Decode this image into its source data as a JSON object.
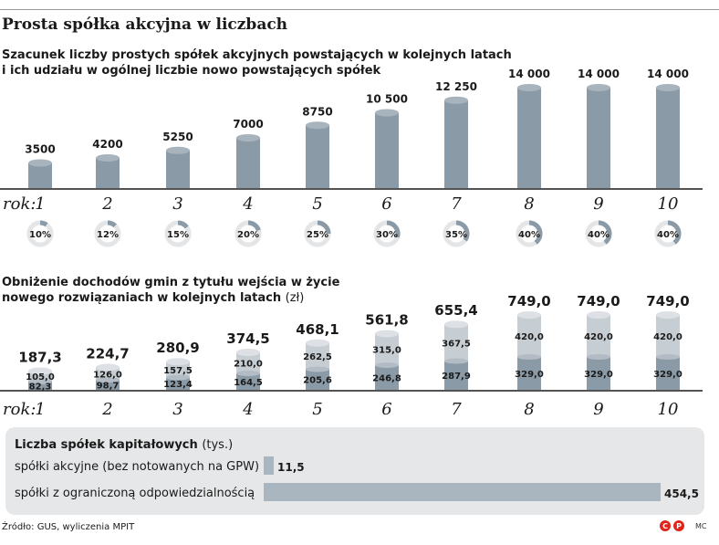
{
  "title": "Prosta spółka akcyjna w liczbach",
  "chart_data": [
    {
      "type": "bar",
      "subtitle_lines": [
        "Szacunek liczby prostych spółek akcyjnych powstających w kolejnych latach",
        "i ich udziału w ogólnej liczbie nowo powstających spółek"
      ],
      "axis_label": "rok:",
      "categories": [
        "1",
        "2",
        "3",
        "4",
        "5",
        "6",
        "7",
        "8",
        "9",
        "10"
      ],
      "values": [
        3500,
        4200,
        5250,
        7000,
        8750,
        10500,
        12250,
        14000,
        14000,
        14000
      ],
      "value_labels": [
        "3500",
        "4200",
        "5250",
        "7000",
        "8750",
        "10 500",
        "12 250",
        "14 000",
        "14 000",
        "14 000"
      ],
      "share_values": [
        10,
        12,
        15,
        20,
        25,
        30,
        35,
        40,
        40,
        40
      ],
      "share_labels": [
        "10%",
        "12%",
        "15%",
        "20%",
        "25%",
        "30%",
        "35%",
        "40%",
        "40%",
        "40%"
      ],
      "ylim": [
        0,
        14000
      ],
      "colors": {
        "bar": "#8a9aa6",
        "share": "#8a9aa6",
        "ring": "#e3e5e7"
      }
    },
    {
      "type": "bar",
      "stacked": true,
      "subtitle_lines": [
        "Obniżenie dochodów gmin z tytułu wejścia w życie",
        "nowego rozwiązaniach w kolejnych latach"
      ],
      "unit": "(zł)",
      "axis_label": "rok:",
      "categories": [
        "1",
        "2",
        "3",
        "4",
        "5",
        "6",
        "7",
        "8",
        "9",
        "10"
      ],
      "totals": [
        187.3,
        224.7,
        280.9,
        374.5,
        468.1,
        561.8,
        655.4,
        749.0,
        749.0,
        749.0
      ],
      "total_labels": [
        "187,3",
        "224,7",
        "280,9",
        "374,5",
        "468,1",
        "561,8",
        "655,4",
        "749,0",
        "749,0",
        "749,0"
      ],
      "series": [
        {
          "values": [
            82.3,
            98.7,
            123.4,
            164.5,
            205.6,
            246.8,
            287.9,
            329.0,
            329.0,
            329.0
          ],
          "labels": [
            "82,3",
            "98,7",
            "123,4",
            "164,5",
            "205,6",
            "246,8",
            "287,9",
            "329,0",
            "329,0",
            "329,0"
          ]
        },
        {
          "values": [
            105.0,
            126.0,
            157.5,
            210.0,
            262.5,
            315.0,
            367.5,
            420.0,
            420.0,
            420.0
          ],
          "labels": [
            "105,0",
            "126,0",
            "157,5",
            "210,0",
            "262,5",
            "315,0",
            "367,5",
            "420,0",
            "420,0",
            "420,0"
          ]
        }
      ],
      "ylim": [
        0,
        749
      ],
      "colors": {
        "lower": "#8a9aa6",
        "upper": "#c6cdd3"
      }
    },
    {
      "type": "bar",
      "orientation": "horizontal",
      "title": "Liczba spółek kapitałowych",
      "unit": "(tys.)",
      "categories": [
        "spółki akcyjne (bez notowanych na GPW)",
        "spółki z ograniczoną odpowiedzialnością"
      ],
      "values": [
        11.5,
        454.5
      ],
      "value_labels": [
        "11,5",
        "454,5"
      ],
      "colors": {
        "bar": "#a9b5bf",
        "panel": "#e6e7e8"
      }
    }
  ],
  "source": "Źródło: GUS, wyliczenia MPIT",
  "author": "MC",
  "logo_icon": "newspaper-logo-icon"
}
